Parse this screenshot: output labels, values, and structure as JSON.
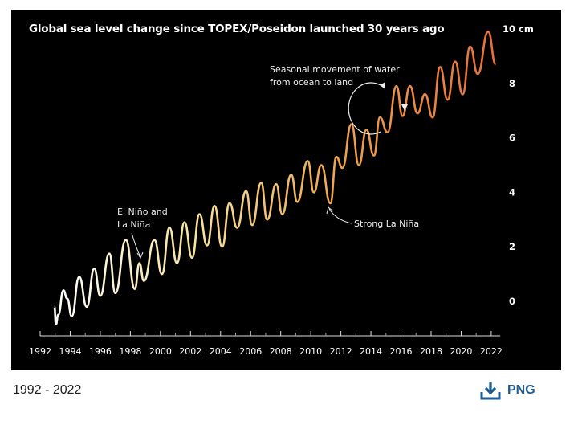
{
  "chart_data": {
    "type": "line",
    "title": "Global sea level change since TOPEX/Poseidon launched 30 years ago",
    "xlabel": "",
    "ylabel": "",
    "y_unit": "cm",
    "xlim": [
      1992,
      2022.6
    ],
    "ylim": [
      -1.2,
      10.4
    ],
    "grid": false,
    "y_axis_position": "right",
    "xticks": [
      "1992",
      "1994",
      "1996",
      "1998",
      "2000",
      "2002",
      "2004",
      "2006",
      "2008",
      "2010",
      "2012",
      "2014",
      "2016",
      "2018",
      "2020",
      "2022"
    ],
    "yticks": [
      {
        "value": 10,
        "label": "10 cm"
      },
      {
        "value": 8,
        "label": "8"
      },
      {
        "value": 6,
        "label": "6"
      },
      {
        "value": 4,
        "label": "4"
      },
      {
        "value": 2,
        "label": "2"
      },
      {
        "value": 0,
        "label": "0"
      }
    ],
    "line_colors": [
      "#ffffff",
      "#f7e39a",
      "#f0a04a",
      "#e8703a"
    ],
    "series": [
      {
        "x": [
          1992.95,
          1993.05,
          1993.2,
          1993.55,
          1993.8,
          1994.1,
          1994.6,
          1995.1,
          1995.6,
          1996.0,
          1996.6,
          1997.0,
          1997.7,
          1998.3,
          1998.6,
          1998.9,
          1999.6,
          2000.1,
          2000.6,
          2001.1,
          2001.6,
          2002.1,
          2002.6,
          2003.1,
          2003.6,
          2004.1,
          2004.6,
          2005.1,
          2005.7,
          2006.1,
          2006.7,
          2007.1,
          2007.7,
          2008.1,
          2008.7,
          2009.1,
          2009.8,
          2010.2,
          2010.7,
          2011.3,
          2011.7,
          2012.1,
          2012.7,
          2013.2,
          2013.7,
          2014.2,
          2014.6,
          2015.1,
          2015.7,
          2016.1,
          2016.6,
          2017.1,
          2017.6,
          2018.1,
          2018.6,
          2019.1,
          2019.6,
          2020.1,
          2020.6,
          2021.1,
          2021.8,
          2022.3
        ],
        "y": [
          -0.2,
          -0.85,
          -0.5,
          0.4,
          0.1,
          -0.55,
          0.9,
          -0.2,
          1.2,
          0.2,
          1.75,
          0.3,
          2.25,
          0.45,
          1.4,
          0.75,
          2.25,
          1.0,
          2.7,
          1.4,
          2.9,
          1.6,
          3.2,
          2.05,
          3.5,
          2.0,
          3.6,
          2.7,
          4.05,
          2.8,
          4.35,
          3.0,
          4.3,
          3.2,
          4.65,
          3.65,
          5.15,
          4.0,
          5.0,
          3.6,
          5.3,
          4.9,
          6.5,
          5.0,
          6.3,
          5.35,
          6.75,
          6.2,
          7.9,
          6.8,
          7.9,
          6.9,
          7.6,
          6.75,
          8.6,
          7.4,
          8.8,
          7.6,
          9.35,
          8.35,
          9.9,
          8.7
        ]
      }
    ],
    "annotations": [
      {
        "lines": [
          "El Niño and",
          "La Niña"
        ],
        "x": 1998.7,
        "y": 1.4
      },
      {
        "lines": [
          "Strong La Niña"
        ],
        "x": 2011.3,
        "y": 3.6
      },
      {
        "lines": [
          "Seasonal movement of water",
          "from ocean to land"
        ],
        "x": 2016.0,
        "y": 7.5
      }
    ]
  },
  "footer": {
    "range": "1992 - 2022",
    "download_label": "PNG",
    "download_icon": "download-icon",
    "download_color": "#1f5a94"
  }
}
